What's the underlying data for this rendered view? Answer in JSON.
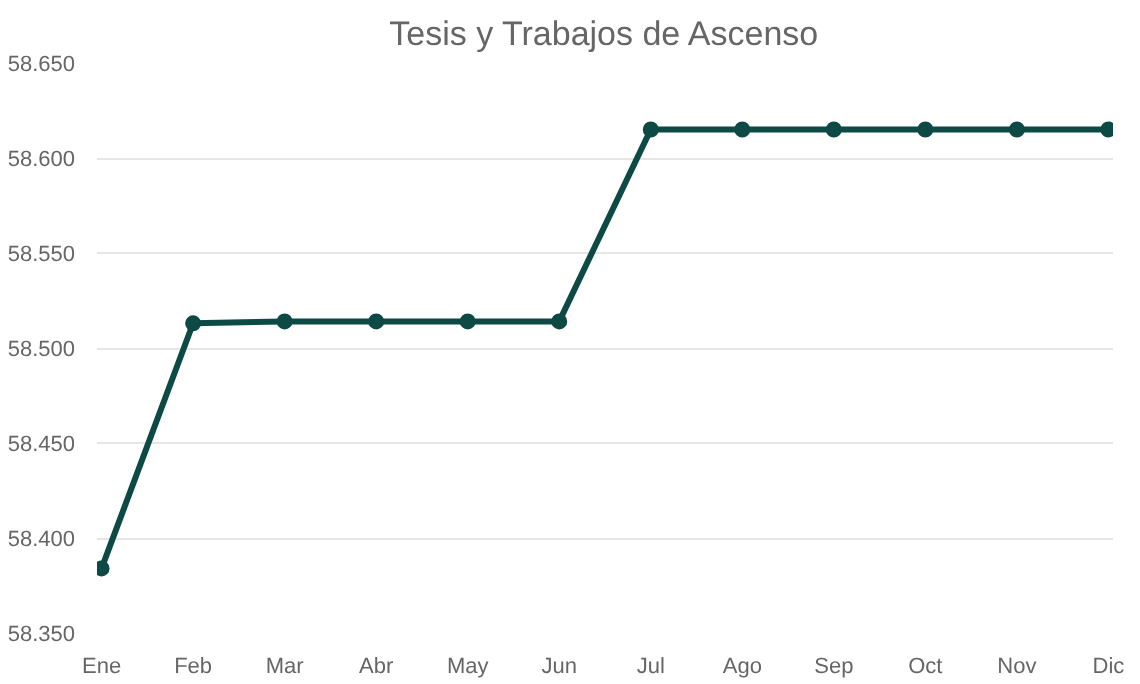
{
  "chart_data": {
    "type": "line",
    "title": "Tesis y Trabajos de Ascenso",
    "categories": [
      "Ene",
      "Feb",
      "Mar",
      "Abr",
      "May",
      "Jun",
      "Jul",
      "Ago",
      "Sep",
      "Oct",
      "Nov",
      "Dic"
    ],
    "series": [
      {
        "color": "#0d4a45",
        "values": [
          58384,
          58513,
          58514,
          58514,
          58514,
          58514,
          58615,
          58615,
          58615,
          58615,
          58615,
          58615
        ]
      }
    ],
    "ylim": [
      58350,
      58650
    ],
    "yticks": [
      {
        "value": 58350,
        "label": "58.350"
      },
      {
        "value": 58400,
        "label": "58.400"
      },
      {
        "value": 58450,
        "label": "58.450"
      },
      {
        "value": 58500,
        "label": "58.500"
      },
      {
        "value": 58550,
        "label": "58.550"
      },
      {
        "value": 58600,
        "label": "58.600"
      },
      {
        "value": 58650,
        "label": "58.650"
      }
    ],
    "grid": "y",
    "marker": "circle",
    "line_style": "solid"
  }
}
